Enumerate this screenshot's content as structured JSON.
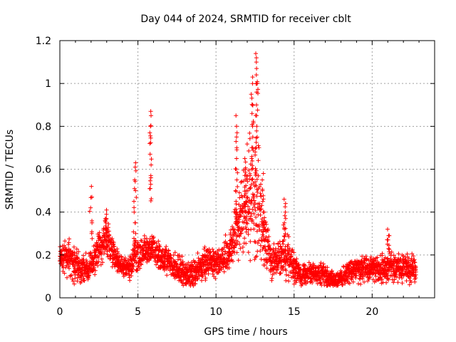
{
  "chart_data": {
    "type": "scatter",
    "title": "Day 044 of 2024, SRMTID for receiver cblt",
    "xlabel": "GPS time / hours",
    "ylabel": "SRMTID / TECUs",
    "xlim": [
      0,
      24
    ],
    "ylim": [
      0,
      1.2
    ],
    "grid": true,
    "marker": "plus",
    "colors": {
      "series": "#ff0000",
      "grid": "#a0a0a0",
      "axes": "#000000"
    },
    "x_tick_labels": [
      "0",
      "5",
      "10",
      "15",
      "20"
    ],
    "y_tick_labels": [
      "0",
      "0.2",
      "0.4",
      "0.6",
      "0.8",
      "1",
      "1.2"
    ],
    "series": [
      {
        "name": "SRMTID",
        "profile": {
          "description": "approximate envelope of scattered points (hour, median TECU, spread)",
          "points": [
            [
              0.0,
              0.19,
              0.04
            ],
            [
              0.5,
              0.2,
              0.05
            ],
            [
              1.0,
              0.15,
              0.05
            ],
            [
              1.5,
              0.13,
              0.04
            ],
            [
              2.0,
              0.15,
              0.05
            ],
            [
              2.5,
              0.24,
              0.05
            ],
            [
              3.0,
              0.27,
              0.06
            ],
            [
              3.5,
              0.19,
              0.04
            ],
            [
              4.0,
              0.15,
              0.03
            ],
            [
              4.5,
              0.14,
              0.03
            ],
            [
              4.8,
              0.2,
              0.05
            ],
            [
              5.0,
              0.2,
              0.04
            ],
            [
              5.5,
              0.22,
              0.04
            ],
            [
              6.0,
              0.24,
              0.04
            ],
            [
              6.5,
              0.17,
              0.04
            ],
            [
              7.0,
              0.17,
              0.04
            ],
            [
              7.5,
              0.13,
              0.04
            ],
            [
              8.0,
              0.12,
              0.05
            ],
            [
              8.5,
              0.1,
              0.04
            ],
            [
              9.0,
              0.15,
              0.04
            ],
            [
              9.5,
              0.17,
              0.04
            ],
            [
              10.0,
              0.16,
              0.04
            ],
            [
              10.5,
              0.17,
              0.05
            ],
            [
              11.0,
              0.25,
              0.06
            ],
            [
              11.5,
              0.35,
              0.1
            ],
            [
              12.0,
              0.45,
              0.15
            ],
            [
              12.5,
              0.5,
              0.2
            ],
            [
              13.0,
              0.3,
              0.1
            ],
            [
              13.5,
              0.18,
              0.06
            ],
            [
              14.0,
              0.18,
              0.05
            ],
            [
              14.5,
              0.2,
              0.06
            ],
            [
              15.0,
              0.14,
              0.04
            ],
            [
              15.5,
              0.11,
              0.03
            ],
            [
              16.0,
              0.11,
              0.03
            ],
            [
              16.5,
              0.11,
              0.03
            ],
            [
              17.0,
              0.11,
              0.03
            ],
            [
              17.5,
              0.08,
              0.03
            ],
            [
              18.0,
              0.09,
              0.03
            ],
            [
              18.5,
              0.12,
              0.03
            ],
            [
              19.0,
              0.14,
              0.04
            ],
            [
              19.5,
              0.13,
              0.04
            ],
            [
              20.0,
              0.14,
              0.04
            ],
            [
              20.5,
              0.12,
              0.04
            ],
            [
              21.0,
              0.16,
              0.05
            ],
            [
              21.5,
              0.14,
              0.04
            ],
            [
              22.0,
              0.14,
              0.04
            ],
            [
              22.5,
              0.13,
              0.04
            ],
            [
              22.8,
              0.13,
              0.04
            ]
          ]
        },
        "bursts": [
          {
            "x": 2.0,
            "values": [
              0.52,
              0.47,
              0.42,
              0.35,
              0.3
            ]
          },
          {
            "x": 3.0,
            "values": [
              0.41,
              0.39,
              0.37,
              0.35,
              0.32
            ]
          },
          {
            "x": 4.8,
            "values": [
              0.63,
              0.61,
              0.55,
              0.5,
              0.45,
              0.4,
              0.35,
              0.3
            ]
          },
          {
            "x": 5.8,
            "values": [
              0.87,
              0.85,
              0.8,
              0.77,
              0.72,
              0.67,
              0.62,
              0.56,
              0.53,
              0.51
            ]
          },
          {
            "x": 11.3,
            "values": [
              0.85,
              0.8,
              0.77,
              0.7,
              0.65,
              0.6,
              0.55,
              0.5,
              0.45,
              0.4
            ]
          },
          {
            "x": 11.9,
            "values": [
              0.65,
              0.6,
              0.55,
              0.5,
              0.45,
              0.4,
              0.35
            ]
          },
          {
            "x": 12.3,
            "values": [
              1.03,
              1.0,
              0.95,
              0.9,
              0.86,
              0.8,
              0.75,
              0.7,
              0.65,
              0.6
            ]
          },
          {
            "x": 12.6,
            "values": [
              1.14,
              1.12,
              1.1,
              1.07,
              1.04,
              1.0,
              0.96,
              0.9,
              0.85,
              0.8,
              0.75,
              0.7
            ]
          },
          {
            "x": 13.0,
            "values": [
              0.58,
              0.55,
              0.5,
              0.45,
              0.4,
              0.35
            ]
          },
          {
            "x": 14.4,
            "values": [
              0.46,
              0.44,
              0.4,
              0.37,
              0.35,
              0.32,
              0.3
            ]
          },
          {
            "x": 21.0,
            "values": [
              0.32,
              0.29,
              0.27,
              0.25
            ]
          }
        ]
      }
    ]
  }
}
